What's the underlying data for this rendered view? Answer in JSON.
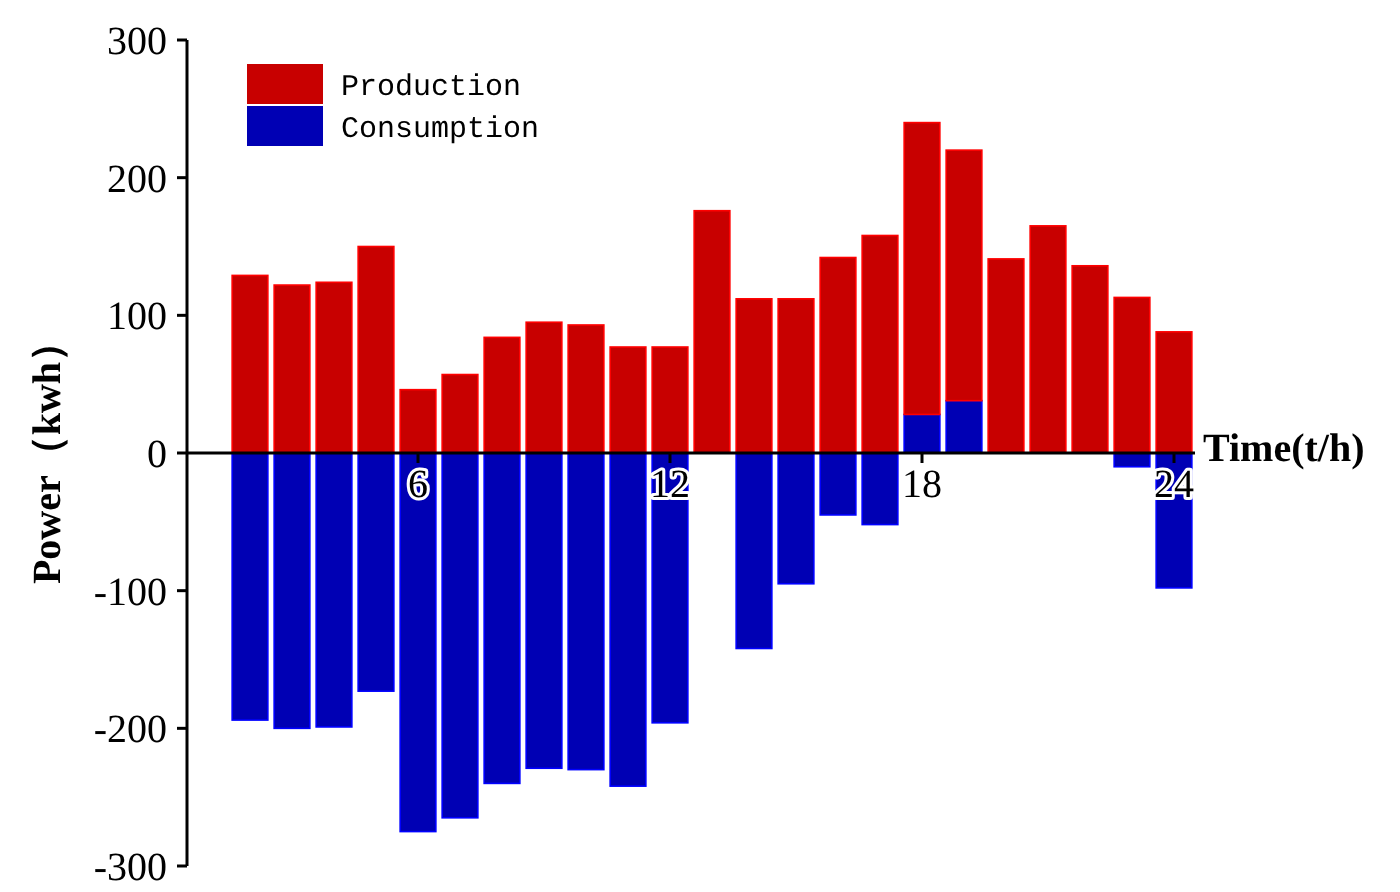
{
  "chart_data": {
    "type": "bar",
    "xlabel": "Time(t/h)",
    "ylabel": "Power（kwh）",
    "x": [
      2,
      3,
      4,
      5,
      6,
      7,
      8,
      9,
      10,
      11,
      12,
      13,
      14,
      15,
      16,
      17,
      18,
      19,
      20,
      21,
      22,
      23,
      24
    ],
    "xlim": [
      0.5,
      24.5
    ],
    "xticks": [
      6,
      12,
      18,
      24
    ],
    "ylim": [
      -300,
      300
    ],
    "yticks": [
      -300,
      -200,
      -100,
      0,
      100,
      200,
      300
    ],
    "legend": "top left",
    "grid": false,
    "stacked": true,
    "series": [
      {
        "name": "Consumption",
        "color": "#0000b4",
        "values": [
          -194,
          -200,
          -199,
          -173,
          -275,
          -265,
          -240,
          -229,
          -230,
          -242,
          -196,
          0,
          -142,
          -95,
          -45,
          -52,
          28,
          38,
          0,
          0,
          0,
          -10,
          -98
        ]
      },
      {
        "name": "Production",
        "color": "#c80000",
        "values": [
          129,
          122,
          124,
          150,
          46,
          57,
          84,
          95,
          93,
          77,
          77,
          176,
          112,
          112,
          142,
          158,
          212,
          182,
          141,
          165,
          136,
          113,
          88
        ]
      }
    ]
  }
}
